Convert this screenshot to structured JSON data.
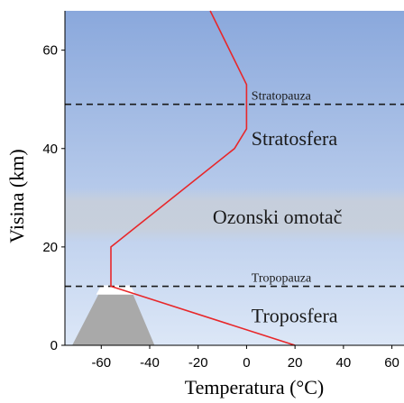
{
  "chart_data": {
    "type": "line",
    "xlabel": "Temperatura (°C)",
    "ylabel": "Visina (km)",
    "x_ticks": [
      -60,
      -40,
      -20,
      0,
      20,
      40,
      60
    ],
    "y_ticks": [
      0,
      20,
      40,
      60
    ],
    "xlim": [
      -75,
      65
    ],
    "ylim": [
      0,
      68
    ],
    "series": [
      {
        "x": [
          20,
          -56,
          -56,
          -5,
          0,
          0,
          -15
        ],
        "y": [
          0,
          12,
          20,
          40,
          44,
          53,
          68
        ]
      }
    ],
    "boundaries": [
      {
        "label": "Tropopauza",
        "altitude": 12
      },
      {
        "label": "Stratopauza",
        "altitude": 49
      }
    ],
    "layers": [
      {
        "label": "Troposfera",
        "label_altitude": 6
      },
      {
        "label": "Ozonski omotač",
        "label_altitude": 26
      },
      {
        "label": "Stratosfera",
        "label_altitude": 42
      }
    ],
    "ozone_band": [
      21,
      32
    ],
    "colors": {
      "line": "#e8272a",
      "sky_top": "#8aa8dc",
      "sky_bottom": "#dce7f7",
      "ozone_band": "#c9cfd8",
      "mountain": "#a9a9a9",
      "snow": "#ffffff",
      "boundary": "#1a1a1a"
    }
  }
}
